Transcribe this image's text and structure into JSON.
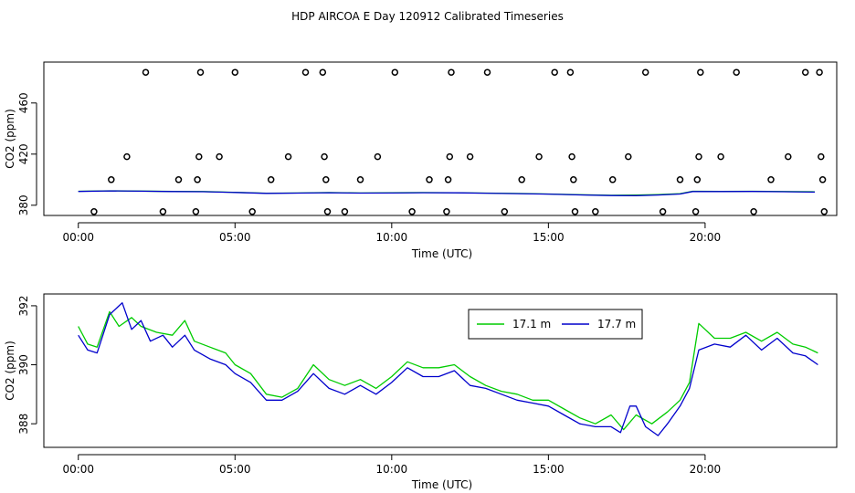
{
  "title": "HDP AIRCOA E  Day 120912  Calibrated Timeseries",
  "colors": {
    "green": "#00cc00",
    "blue": "#0000cc",
    "axis": "#000000"
  },
  "chart_data": [
    {
      "type": "scatter",
      "xlabel": "Time (UTC)",
      "ylabel": "CO2 (ppm)",
      "xlim": [
        -1.1,
        24.2
      ],
      "ylim": [
        372,
        492
      ],
      "x_ticks": [
        0,
        5,
        10,
        15,
        20
      ],
      "x_tick_labels": [
        "00:00",
        "05:00",
        "10:00",
        "15:00",
        "20:00"
      ],
      "y_ticks": [
        380,
        420,
        460
      ],
      "y_tick_labels": [
        "380",
        "420",
        "460"
      ],
      "grid": false,
      "points": [
        [
          0.5,
          375
        ],
        [
          1.05,
          400
        ],
        [
          1.55,
          418
        ],
        [
          2.15,
          484
        ],
        [
          2.7,
          375
        ],
        [
          3.2,
          400
        ],
        [
          3.75,
          375
        ],
        [
          3.8,
          400
        ],
        [
          3.85,
          418
        ],
        [
          3.9,
          484
        ],
        [
          4.5,
          418
        ],
        [
          5.0,
          484
        ],
        [
          5.55,
          375
        ],
        [
          6.15,
          400
        ],
        [
          6.7,
          418
        ],
        [
          7.25,
          484
        ],
        [
          7.8,
          484
        ],
        [
          7.85,
          418
        ],
        [
          7.9,
          400
        ],
        [
          7.95,
          375
        ],
        [
          8.5,
          375
        ],
        [
          9.0,
          400
        ],
        [
          9.55,
          418
        ],
        [
          10.1,
          484
        ],
        [
          10.65,
          375
        ],
        [
          11.2,
          400
        ],
        [
          11.75,
          375
        ],
        [
          11.8,
          400
        ],
        [
          11.85,
          418
        ],
        [
          11.9,
          484
        ],
        [
          12.5,
          418
        ],
        [
          13.05,
          484
        ],
        [
          13.6,
          375
        ],
        [
          14.15,
          400
        ],
        [
          14.7,
          418
        ],
        [
          15.2,
          484
        ],
        [
          15.7,
          484
        ],
        [
          15.75,
          418
        ],
        [
          15.8,
          400
        ],
        [
          15.85,
          375
        ],
        [
          16.5,
          375
        ],
        [
          17.05,
          400
        ],
        [
          17.55,
          418
        ],
        [
          18.1,
          484
        ],
        [
          18.65,
          375
        ],
        [
          19.2,
          400
        ],
        [
          19.7,
          375
        ],
        [
          19.75,
          400
        ],
        [
          19.8,
          418
        ],
        [
          19.85,
          484
        ],
        [
          20.5,
          418
        ],
        [
          21.0,
          484
        ],
        [
          21.55,
          375
        ],
        [
          22.1,
          400
        ],
        [
          22.65,
          418
        ],
        [
          23.2,
          484
        ],
        [
          23.65,
          484
        ],
        [
          23.7,
          418
        ],
        [
          23.75,
          400
        ],
        [
          23.8,
          375
        ]
      ],
      "series": [
        {
          "values": [
            [
              0,
              390.9
            ],
            [
              1,
              391.3
            ],
            [
              2,
              391.1
            ],
            [
              3,
              390.8
            ],
            [
              4,
              390.7
            ],
            [
              5,
              390.1
            ],
            [
              6,
              389.4
            ],
            [
              7,
              389.6
            ],
            [
              8,
              389.9
            ],
            [
              9,
              389.6
            ],
            [
              10,
              389.7
            ],
            [
              11,
              389.9
            ],
            [
              12,
              389.8
            ],
            [
              13,
              389.5
            ],
            [
              14,
              389.2
            ],
            [
              15,
              388.8
            ],
            [
              16,
              388.2
            ],
            [
              17,
              387.8
            ],
            [
              17.8,
              387.9
            ],
            [
              18.5,
              388.3
            ],
            [
              19.2,
              389.0
            ],
            [
              19.6,
              390.9
            ],
            [
              20.5,
              390.8
            ],
            [
              21.5,
              390.9
            ],
            [
              22.5,
              390.7
            ],
            [
              23.5,
              390.5
            ]
          ]
        },
        {
          "values": [
            [
              0,
              390.8
            ],
            [
              1,
              391.2
            ],
            [
              2,
              391.0
            ],
            [
              3,
              390.7
            ],
            [
              4,
              390.6
            ],
            [
              5,
              390.0
            ],
            [
              6,
              389.3
            ],
            [
              7,
              389.5
            ],
            [
              8,
              389.8
            ],
            [
              9,
              389.5
            ],
            [
              10,
              389.6
            ],
            [
              11,
              389.8
            ],
            [
              12,
              389.7
            ],
            [
              13,
              389.4
            ],
            [
              14,
              389.1
            ],
            [
              15,
              388.7
            ],
            [
              16,
              388.1
            ],
            [
              17,
              387.6
            ],
            [
              17.8,
              387.5
            ],
            [
              18.5,
              388.0
            ],
            [
              19.2,
              388.8
            ],
            [
              19.6,
              390.7
            ],
            [
              20.5,
              390.7
            ],
            [
              21.5,
              390.8
            ],
            [
              22.5,
              390.6
            ],
            [
              23.5,
              390.3
            ]
          ]
        }
      ]
    },
    {
      "type": "line",
      "xlabel": "Time (UTC)",
      "ylabel": "CO2 (ppm)",
      "xlim": [
        -1.1,
        24.2
      ],
      "ylim": [
        387.2,
        392.4
      ],
      "x_ticks": [
        0,
        5,
        10,
        15,
        20
      ],
      "x_tick_labels": [
        "00:00",
        "05:00",
        "10:00",
        "15:00",
        "20:00"
      ],
      "y_ticks": [
        388,
        390,
        392
      ],
      "y_tick_labels": [
        "388",
        "390",
        "392"
      ],
      "grid": false,
      "legend": {
        "placement": "top-right",
        "entries": [
          "17.1 m",
          "17.7 m"
        ]
      },
      "series": [
        {
          "name": "17.1 m",
          "color": "#00cc00",
          "values": [
            [
              0,
              391.3
            ],
            [
              0.3,
              390.7
            ],
            [
              0.6,
              390.6
            ],
            [
              1.0,
              391.8
            ],
            [
              1.3,
              391.3
            ],
            [
              1.7,
              391.6
            ],
            [
              2.0,
              391.3
            ],
            [
              2.5,
              391.1
            ],
            [
              3.0,
              391.0
            ],
            [
              3.4,
              391.5
            ],
            [
              3.7,
              390.8
            ],
            [
              4.2,
              390.6
            ],
            [
              4.7,
              390.4
            ],
            [
              5.0,
              390.0
            ],
            [
              5.5,
              389.7
            ],
            [
              6.0,
              389.0
            ],
            [
              6.5,
              388.9
            ],
            [
              7.0,
              389.2
            ],
            [
              7.5,
              390.0
            ],
            [
              8.0,
              389.5
            ],
            [
              8.5,
              389.3
            ],
            [
              9.0,
              389.5
            ],
            [
              9.5,
              389.2
            ],
            [
              10.0,
              389.6
            ],
            [
              10.5,
              390.1
            ],
            [
              11.0,
              389.9
            ],
            [
              11.5,
              389.9
            ],
            [
              12.0,
              390.0
            ],
            [
              12.5,
              389.6
            ],
            [
              13.0,
              389.3
            ],
            [
              13.5,
              389.1
            ],
            [
              14.0,
              389.0
            ],
            [
              14.5,
              388.8
            ],
            [
              15.0,
              388.8
            ],
            [
              15.5,
              388.5
            ],
            [
              16.0,
              388.2
            ],
            [
              16.5,
              388.0
            ],
            [
              17.0,
              388.3
            ],
            [
              17.4,
              387.8
            ],
            [
              17.8,
              388.3
            ],
            [
              18.3,
              388.0
            ],
            [
              18.8,
              388.4
            ],
            [
              19.2,
              388.8
            ],
            [
              19.5,
              389.4
            ],
            [
              19.8,
              391.4
            ],
            [
              20.3,
              390.9
            ],
            [
              20.8,
              390.9
            ],
            [
              21.3,
              391.1
            ],
            [
              21.8,
              390.8
            ],
            [
              22.3,
              391.1
            ],
            [
              22.8,
              390.7
            ],
            [
              23.2,
              390.6
            ],
            [
              23.6,
              390.4
            ]
          ]
        },
        {
          "name": "17.7 m",
          "color": "#0000cc",
          "values": [
            [
              0,
              391.0
            ],
            [
              0.3,
              390.5
            ],
            [
              0.6,
              390.4
            ],
            [
              1.0,
              391.7
            ],
            [
              1.4,
              392.1
            ],
            [
              1.7,
              391.2
            ],
            [
              2.0,
              391.5
            ],
            [
              2.3,
              390.8
            ],
            [
              2.7,
              391.0
            ],
            [
              3.0,
              390.6
            ],
            [
              3.4,
              391.0
            ],
            [
              3.7,
              390.5
            ],
            [
              4.2,
              390.2
            ],
            [
              4.7,
              390.0
            ],
            [
              5.0,
              389.7
            ],
            [
              5.5,
              389.4
            ],
            [
              6.0,
              388.8
            ],
            [
              6.5,
              388.8
            ],
            [
              7.0,
              389.1
            ],
            [
              7.5,
              389.7
            ],
            [
              8.0,
              389.2
            ],
            [
              8.5,
              389.0
            ],
            [
              9.0,
              389.3
            ],
            [
              9.5,
              389.0
            ],
            [
              10.0,
              389.4
            ],
            [
              10.5,
              389.9
            ],
            [
              11.0,
              389.6
            ],
            [
              11.5,
              389.6
            ],
            [
              12.0,
              389.8
            ],
            [
              12.5,
              389.3
            ],
            [
              13.0,
              389.2
            ],
            [
              13.5,
              389.0
            ],
            [
              14.0,
              388.8
            ],
            [
              14.5,
              388.7
            ],
            [
              15.0,
              388.6
            ],
            [
              15.5,
              388.3
            ],
            [
              16.0,
              388.0
            ],
            [
              16.5,
              387.9
            ],
            [
              17.0,
              387.9
            ],
            [
              17.3,
              387.7
            ],
            [
              17.6,
              388.6
            ],
            [
              17.8,
              388.6
            ],
            [
              18.1,
              387.9
            ],
            [
              18.5,
              387.6
            ],
            [
              18.8,
              388.0
            ],
            [
              19.2,
              388.6
            ],
            [
              19.5,
              389.2
            ],
            [
              19.8,
              390.5
            ],
            [
              20.3,
              390.7
            ],
            [
              20.8,
              390.6
            ],
            [
              21.3,
              391.0
            ],
            [
              21.8,
              390.5
            ],
            [
              22.3,
              390.9
            ],
            [
              22.8,
              390.4
            ],
            [
              23.2,
              390.3
            ],
            [
              23.6,
              390.0
            ]
          ]
        }
      ]
    }
  ]
}
